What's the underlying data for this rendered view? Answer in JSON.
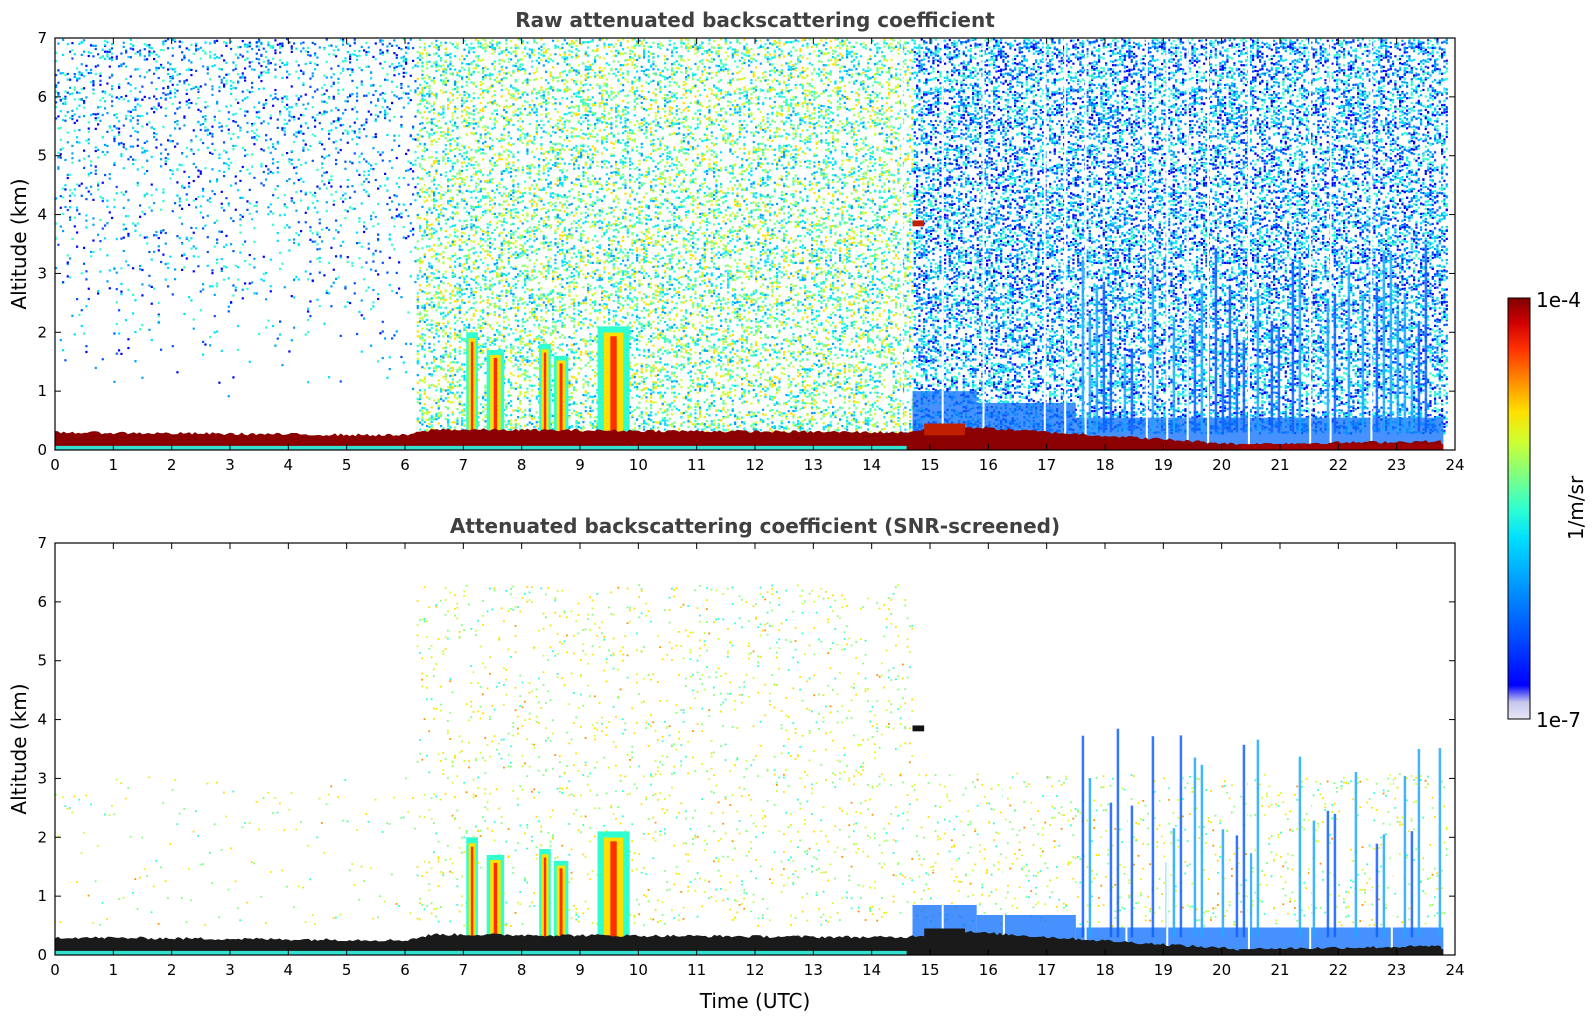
{
  "chart_data": [
    {
      "type": "heatmap",
      "title": "Raw attenuated backscattering coefficient",
      "xlabel": "",
      "ylabel": "Altitude (km)",
      "xlim": [
        0,
        24
      ],
      "ylim": [
        0,
        7
      ],
      "x_ticks": [
        "0",
        "1",
        "2",
        "3",
        "4",
        "5",
        "6",
        "7",
        "8",
        "9",
        "10",
        "11",
        "12",
        "13",
        "14",
        "15",
        "16",
        "17",
        "18",
        "19",
        "20",
        "21",
        "22",
        "23",
        "24"
      ],
      "y_ticks": [
        "0",
        "1",
        "2",
        "3",
        "4",
        "5",
        "6",
        "7"
      ],
      "features": {
        "boundary_layer_top_km": [
          {
            "t": 0,
            "h": 0.3
          },
          {
            "t": 6,
            "h": 0.25
          },
          {
            "t": 6.5,
            "h": 0.35
          },
          {
            "t": 14.5,
            "h": 0.3
          },
          {
            "t": 15.5,
            "h": 0.4
          },
          {
            "t": 20.3,
            "h": 0.1
          },
          {
            "t": 23.8,
            "h": 0.15
          }
        ],
        "convective_plumes": [
          {
            "t_start": 7.05,
            "t_end": 7.25,
            "top_km": 2.0
          },
          {
            "t_start": 7.4,
            "t_end": 7.7,
            "top_km": 1.7
          },
          {
            "t_start": 8.3,
            "t_end": 8.5,
            "top_km": 1.8
          },
          {
            "t_start": 8.55,
            "t_end": 8.8,
            "top_km": 1.6
          },
          {
            "t_start": 9.3,
            "t_end": 9.85,
            "top_km": 2.1
          }
        ],
        "elevated_layer": {
          "t_start": 14.7,
          "t_end": 14.9,
          "altitude_km": 3.85
        },
        "noise_level": {
          "night_low": "0-6 UTC",
          "high": "6-14.7 UTC",
          "moderate_blue": "14.7-24 UTC"
        }
      }
    },
    {
      "type": "heatmap",
      "title": "Attenuated backscattering coefficient (SNR-screened)",
      "xlabel": "Time (UTC)",
      "ylabel": "Altitude (km)",
      "xlim": [
        0,
        24
      ],
      "ylim": [
        0,
        7
      ],
      "x_ticks": [
        "0",
        "1",
        "2",
        "3",
        "4",
        "5",
        "6",
        "7",
        "8",
        "9",
        "10",
        "11",
        "12",
        "13",
        "14",
        "15",
        "16",
        "17",
        "18",
        "19",
        "20",
        "21",
        "22",
        "23",
        "24"
      ],
      "y_ticks": [
        "0",
        "1",
        "2",
        "3",
        "4",
        "5",
        "6",
        "7"
      ],
      "features": {
        "screened_signal": "noise removed above ~2.5 km except sparse points",
        "blue_columns_window_utc": [
          17.5,
          23.8
        ],
        "blue_columns_top_km": 4.0
      }
    }
  ],
  "colorbar": {
    "max_label": "1e-4",
    "min_label": "1e-7",
    "unit_label": "1/m/sr",
    "colors": [
      "#e8e8f6",
      "#c6c6ee",
      "#0000ff",
      "#0050ff",
      "#00a0ff",
      "#00e0ff",
      "#30ffd0",
      "#80ff80",
      "#d0ff30",
      "#ffe000",
      "#ff9000",
      "#ff3000",
      "#d00000",
      "#800000"
    ]
  }
}
